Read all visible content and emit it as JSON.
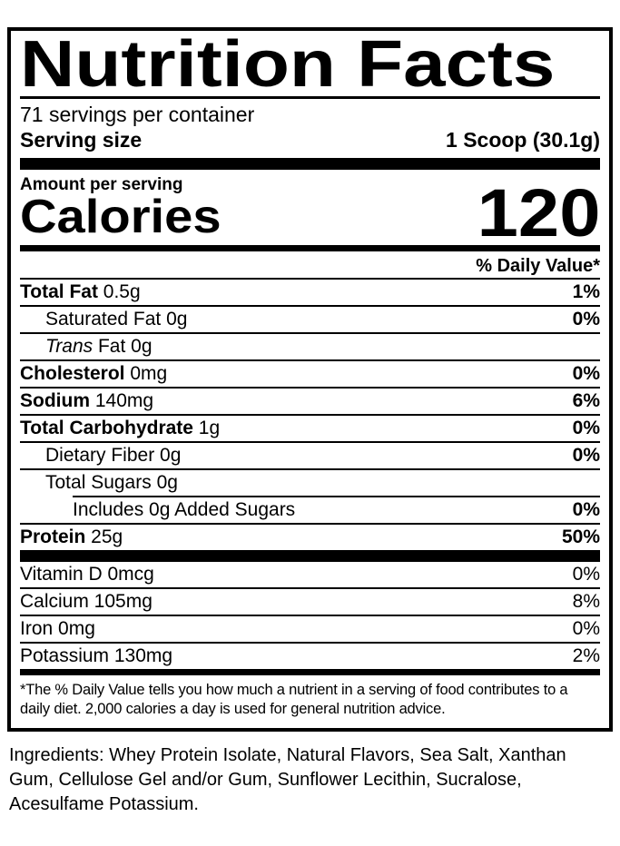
{
  "label": {
    "title": "Nutrition Facts",
    "servings_per_container": "71 servings per container",
    "serving_size": {
      "label": "Serving size",
      "value": "1 Scoop (30.1g)"
    },
    "amount_per_serving": "Amount per serving",
    "calories": {
      "label": "Calories",
      "value": "120"
    },
    "daily_value_header": "% Daily Value*",
    "nutrients": [
      {
        "bold": "Total Fat",
        "rest": " 0.5g",
        "dv": "1%"
      },
      {
        "bold": "",
        "rest": "Saturated Fat 0g",
        "dv": "0%"
      },
      {
        "bold": "",
        "italic": "Trans",
        "rest": " Fat 0g",
        "dv": ""
      },
      {
        "bold": "Cholesterol",
        "rest": " 0mg",
        "dv": "0%"
      },
      {
        "bold": "Sodium",
        "rest": " 140mg",
        "dv": "6%"
      },
      {
        "bold": "Total Carbohydrate",
        "rest": " 1g",
        "dv": "0%"
      },
      {
        "bold": "",
        "rest": "Dietary Fiber 0g",
        "dv": "0%"
      },
      {
        "bold": "",
        "rest": "Total Sugars 0g",
        "dv": ""
      },
      {
        "bold": "",
        "rest": "Includes 0g Added Sugars",
        "dv": "0%"
      },
      {
        "bold": "Protein",
        "rest": " 25g",
        "dv": "50%"
      }
    ],
    "micronutrients": [
      {
        "name": "Vitamin D 0mcg",
        "dv": "0%"
      },
      {
        "name": "Calcium 105mg",
        "dv": "8%"
      },
      {
        "name": "Iron 0mg",
        "dv": "0%"
      },
      {
        "name": "Potassium 130mg",
        "dv": "2%"
      }
    ],
    "footnote": "*The % Daily Value tells you how much a nutrient in a serving of food contributes to a daily diet. 2,000 calories a day is used for general nutrition advice."
  },
  "ingredients": "Ingredients: Whey Protein Isolate, Natural Flavors, Sea Salt, Xanthan Gum, Cellulose Gel and/or Gum, Sunflower Lecithin, Sucralose, Acesulfame Potassium.",
  "colors": {
    "ink": "#000000",
    "background": "#ffffff"
  }
}
